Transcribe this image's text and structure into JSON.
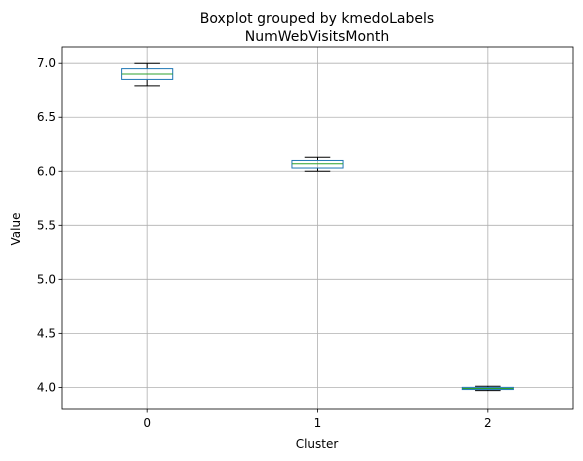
{
  "chart_data": {
    "type": "boxplot",
    "suptitle": "Boxplot grouped by kmedoLabels",
    "title": "NumWebVisitsMonth",
    "xlabel": "Cluster",
    "ylabel": "Value",
    "categories": [
      "0",
      "1",
      "2"
    ],
    "ylim": [
      3.8,
      7.15
    ],
    "yticks": [
      4.0,
      4.5,
      5.0,
      5.5,
      6.0,
      6.5,
      7.0
    ],
    "ytick_labels": [
      "4.0",
      "4.5",
      "5.0",
      "5.5",
      "6.0",
      "6.5",
      "7.0"
    ],
    "grid": true,
    "boxes": [
      {
        "category": "0",
        "whisker_low": 6.79,
        "q1": 6.85,
        "median": 6.9,
        "q3": 6.95,
        "whisker_high": 7.0
      },
      {
        "category": "1",
        "whisker_low": 6.0,
        "q1": 6.03,
        "median": 6.07,
        "q3": 6.1,
        "whisker_high": 6.13
      },
      {
        "category": "2",
        "whisker_low": 3.97,
        "q1": 3.98,
        "median": 3.99,
        "q3": 4.0,
        "whisker_high": 4.01
      }
    ],
    "colors": {
      "box": "#1f77b4",
      "median": "#2ca02c",
      "whisker": "#000000",
      "grid": "#b0b0b0",
      "frame": "#000000"
    }
  }
}
